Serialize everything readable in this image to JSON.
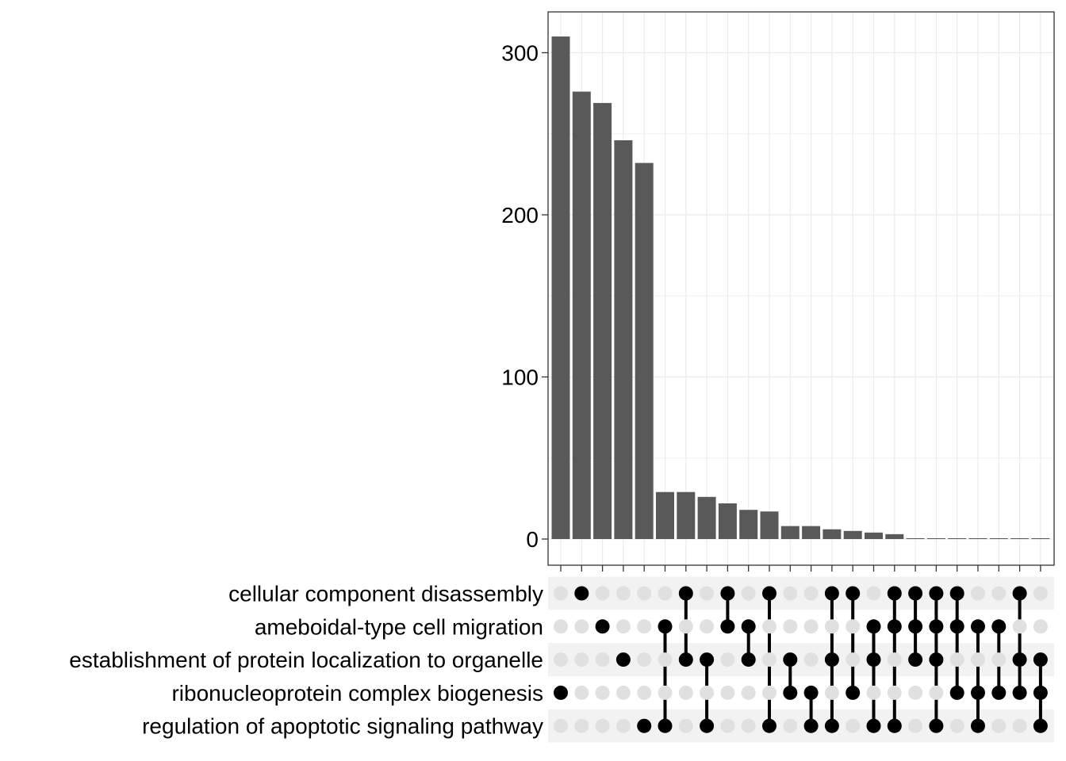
{
  "chart_data": {
    "type": "bar",
    "subtype": "upset",
    "xlabel": "",
    "ylabel": "",
    "ylim": [
      0,
      325
    ],
    "yticks": [
      0,
      100,
      200,
      300
    ],
    "grid": true,
    "bar_color": "#595959",
    "dot_on_color": "#000000",
    "dot_off_color": "#e0e0e0",
    "stripe_color": "#f2f2f2",
    "sets": [
      "cellular component disassembly",
      "ameboidal-type cell migration",
      "establishment of protein localization to organelle",
      "ribonucleoprotein complex biogenesis",
      "regulation of apoptotic signaling pathway"
    ],
    "intersections": [
      {
        "value": 310,
        "members": [
          3
        ]
      },
      {
        "value": 276,
        "members": [
          0
        ]
      },
      {
        "value": 269,
        "members": [
          1
        ]
      },
      {
        "value": 246,
        "members": [
          2
        ]
      },
      {
        "value": 232,
        "members": [
          4
        ]
      },
      {
        "value": 29,
        "members": [
          1,
          4
        ]
      },
      {
        "value": 29,
        "members": [
          0,
          2
        ]
      },
      {
        "value": 26,
        "members": [
          2,
          4
        ]
      },
      {
        "value": 22,
        "members": [
          0,
          1
        ]
      },
      {
        "value": 18,
        "members": [
          1,
          2
        ]
      },
      {
        "value": 17,
        "members": [
          0,
          4
        ]
      },
      {
        "value": 8,
        "members": [
          2,
          3
        ]
      },
      {
        "value": 8,
        "members": [
          3,
          4
        ]
      },
      {
        "value": 6,
        "members": [
          0,
          2,
          4
        ]
      },
      {
        "value": 5,
        "members": [
          0,
          3
        ]
      },
      {
        "value": 4,
        "members": [
          1,
          2,
          4
        ]
      },
      {
        "value": 3,
        "members": [
          0,
          1,
          4
        ]
      },
      {
        "value": 0.5,
        "members": [
          0,
          1,
          2
        ]
      },
      {
        "value": 0.5,
        "members": [
          0,
          1,
          2,
          4
        ]
      },
      {
        "value": 0.5,
        "members": [
          0,
          1,
          3
        ]
      },
      {
        "value": 0.5,
        "members": [
          1,
          3,
          4
        ]
      },
      {
        "value": 0.5,
        "members": [
          1,
          3
        ]
      },
      {
        "value": 0.5,
        "members": [
          0,
          2,
          3
        ]
      },
      {
        "value": 0.5,
        "members": [
          2,
          3,
          4
        ]
      }
    ]
  }
}
